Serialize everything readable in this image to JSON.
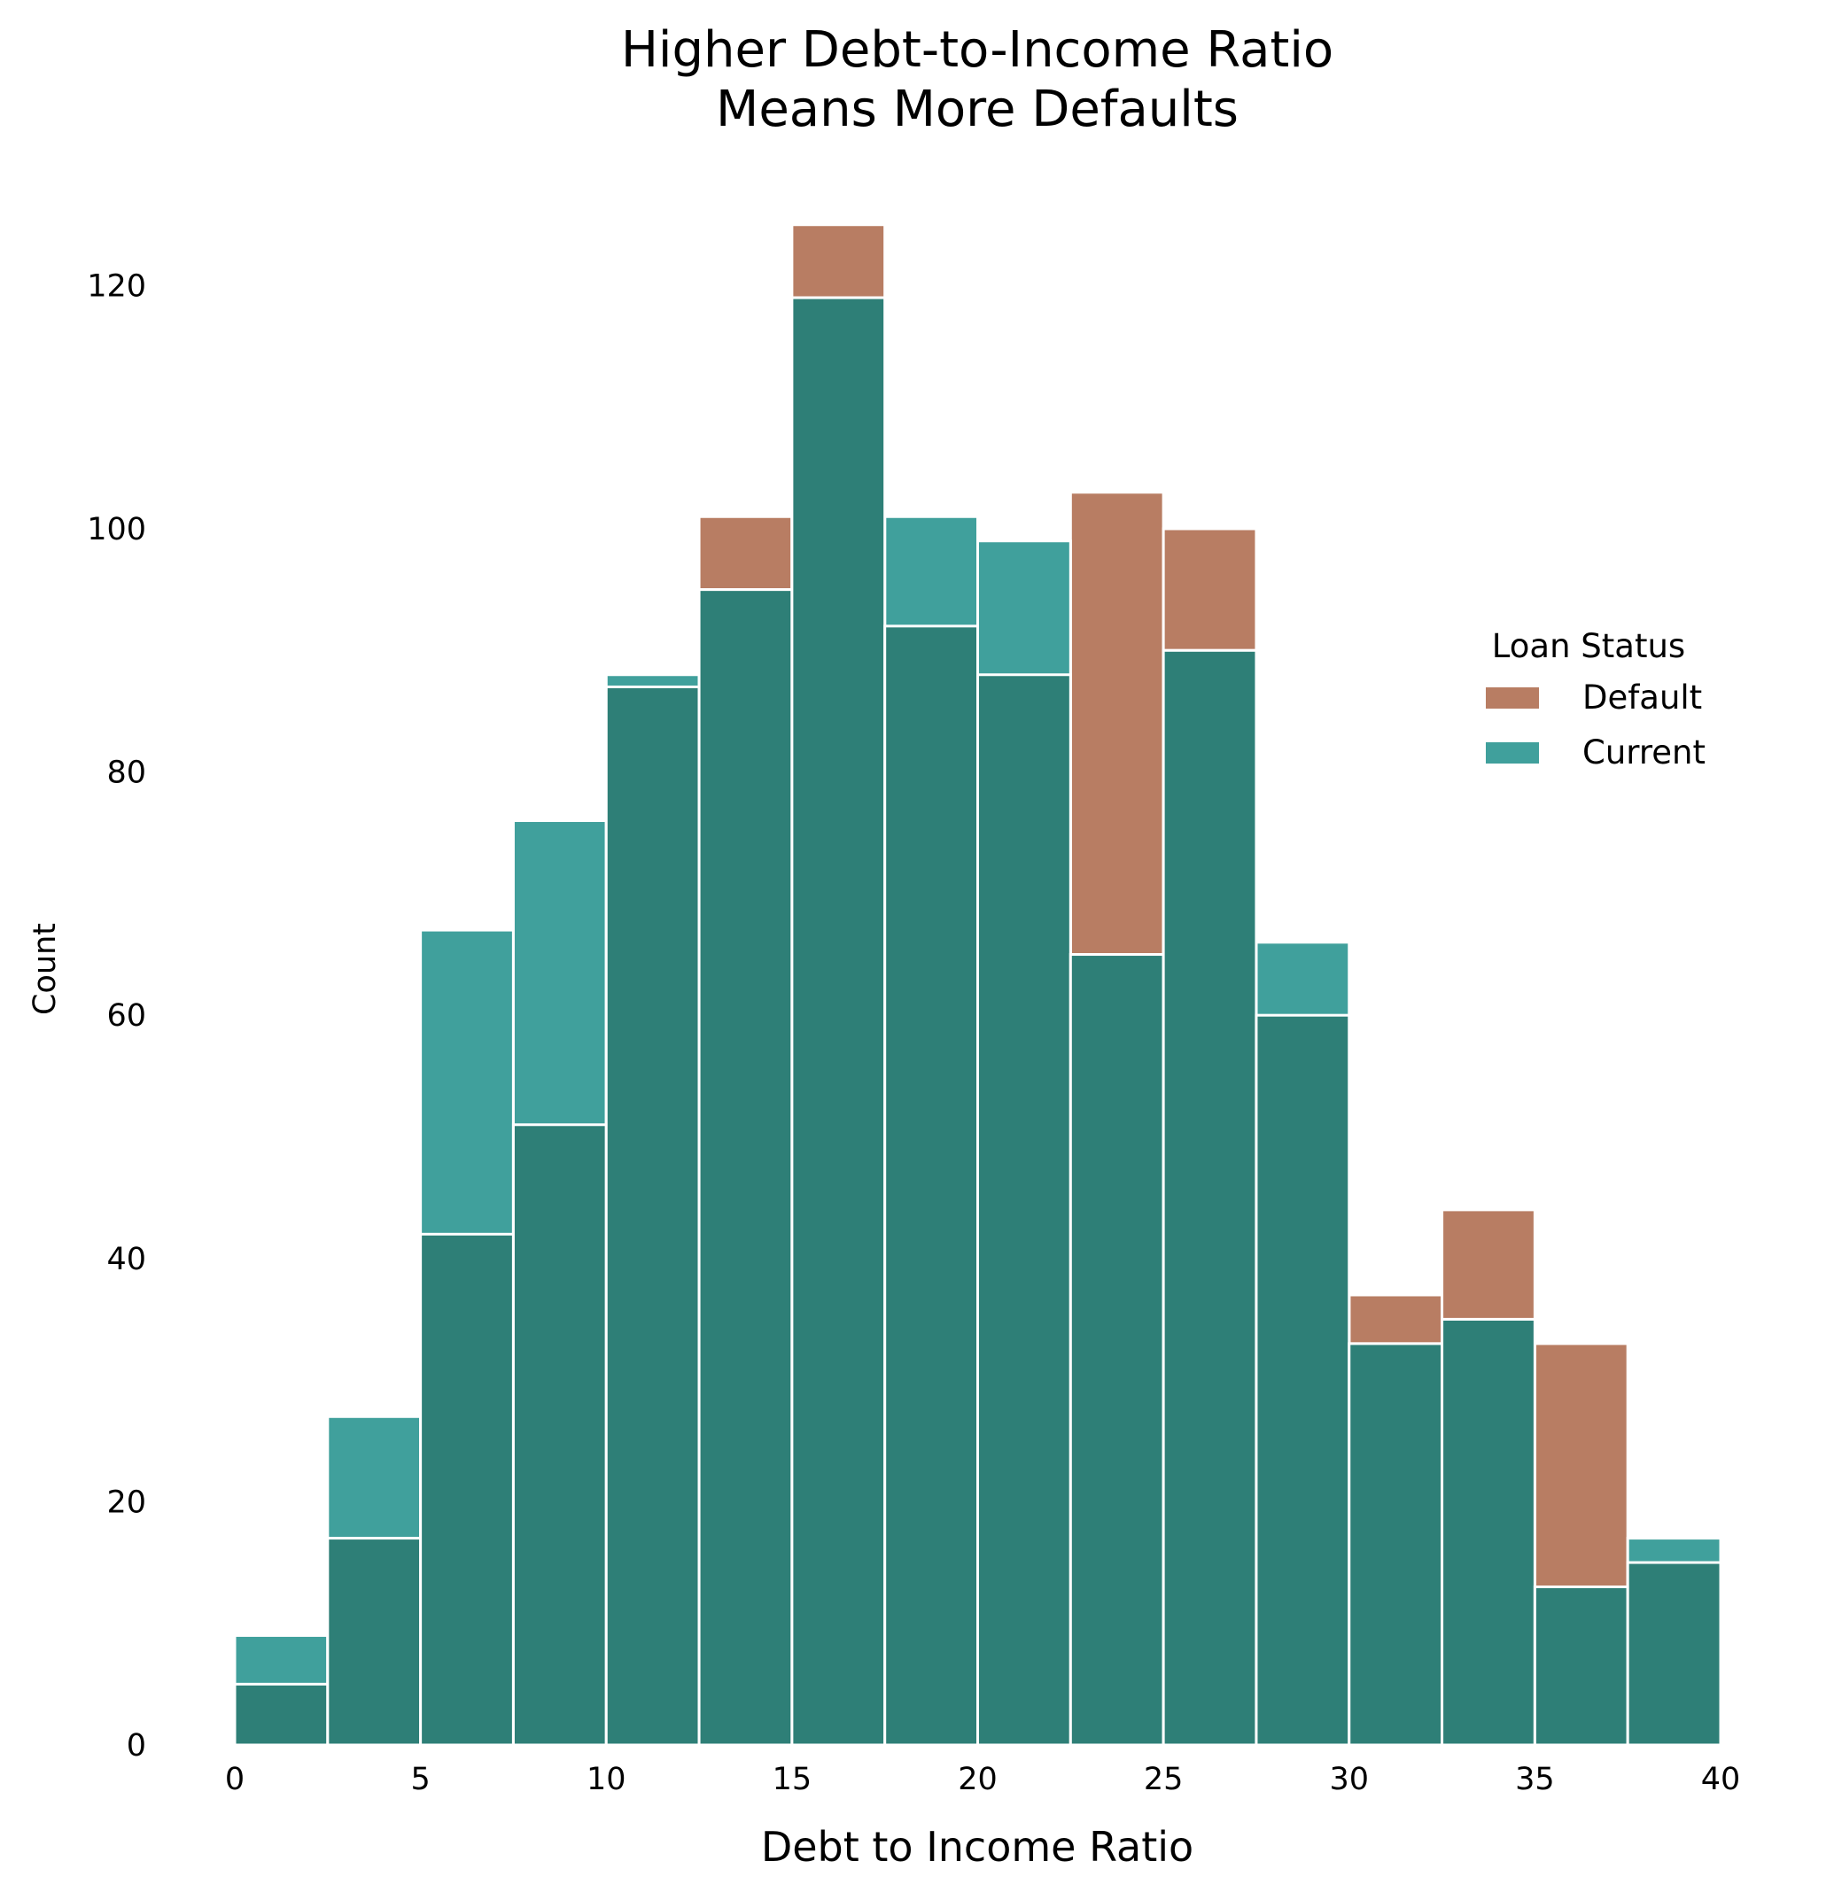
{
  "chart_data": {
    "type": "bar",
    "title": [
      "Higher Debt-to-Income Ratio",
      "Means More Defaults"
    ],
    "xlabel": "Debt to Income Ratio",
    "ylabel": "Count",
    "xlim": [
      0,
      40
    ],
    "ylim": [
      0,
      126
    ],
    "xticks": [
      0,
      5,
      10,
      15,
      20,
      25,
      30,
      35,
      40
    ],
    "yticks": [
      0,
      20,
      40,
      60,
      80,
      100,
      120
    ],
    "grid": false,
    "bin_edges": [
      0,
      2.5,
      5,
      7.5,
      10,
      12.5,
      15,
      17.5,
      20,
      22.5,
      25,
      27.5,
      30,
      32.5,
      35,
      37.5,
      40
    ],
    "series": [
      {
        "name": "Default",
        "color": "#b87d63",
        "values": [
          5,
          17,
          42,
          51,
          87,
          101,
          125,
          92,
          88,
          103,
          100,
          60,
          37,
          44,
          33,
          15
        ]
      },
      {
        "name": "Current",
        "color": "#40a09c",
        "values": [
          9,
          27,
          67,
          76,
          88,
          95,
          119,
          101,
          99,
          65,
          90,
          66,
          33,
          35,
          13,
          17
        ]
      }
    ],
    "overlap_color": "#2e7f77",
    "legend": {
      "title": "Loan Status",
      "placement": "right"
    }
  }
}
